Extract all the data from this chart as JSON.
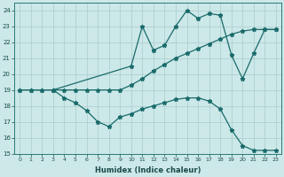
{
  "xlabel": "Humidex (Indice chaleur)",
  "xlim": [
    -0.5,
    23.5
  ],
  "ylim": [
    15,
    24.5
  ],
  "yticks": [
    15,
    16,
    17,
    18,
    19,
    20,
    21,
    22,
    23,
    24
  ],
  "xticks": [
    0,
    1,
    2,
    3,
    4,
    5,
    6,
    7,
    8,
    9,
    10,
    11,
    12,
    13,
    14,
    15,
    16,
    17,
    18,
    19,
    20,
    21,
    22,
    23
  ],
  "bg_color": "#cce8e8",
  "grid_color": "#aacccc",
  "line_color": "#1a6b6b",
  "lines": [
    {
      "x": [
        0,
        1,
        2,
        3,
        4,
        5,
        6,
        7,
        8,
        9,
        10,
        11,
        12,
        13,
        14,
        15,
        16,
        17,
        18,
        19,
        20,
        21,
        22,
        23
      ],
      "y": [
        19,
        19,
        19,
        19,
        18.5,
        18.2,
        17.7,
        17.0,
        16.7,
        17.3,
        17.5,
        17.8,
        18.0,
        18.2,
        18.4,
        18.5,
        18.5,
        18.3,
        17.8,
        16.5,
        15.5,
        15.2,
        15.2,
        15.2
      ]
    },
    {
      "x": [
        0,
        1,
        2,
        3,
        4,
        5,
        6,
        7,
        8,
        9,
        10,
        11,
        12,
        13,
        14,
        15,
        16,
        17,
        18,
        19,
        20,
        21,
        22,
        23
      ],
      "y": [
        19,
        19,
        19,
        19,
        19,
        19,
        19,
        19,
        19,
        19,
        19.3,
        19.7,
        20.2,
        20.6,
        21.0,
        21.3,
        21.6,
        21.9,
        22.2,
        22.5,
        22.7,
        22.8,
        22.8,
        22.8
      ]
    },
    {
      "x": [
        3,
        10,
        11,
        12,
        13,
        14,
        15,
        16,
        17,
        18,
        19,
        20,
        21,
        22,
        23
      ],
      "y": [
        19,
        20.5,
        23.0,
        21.5,
        21.8,
        23.0,
        24.0,
        23.5,
        23.8,
        23.7,
        21.2,
        19.7,
        21.3,
        22.8,
        22.8
      ]
    }
  ]
}
